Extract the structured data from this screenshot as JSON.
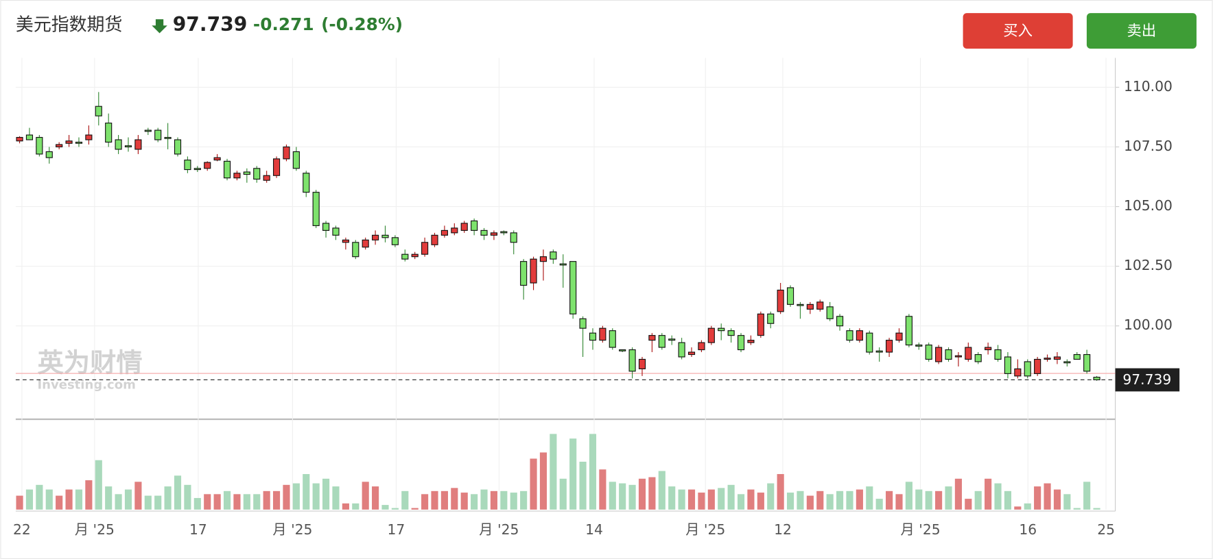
{
  "header": {
    "title": "美元指数期货",
    "change": "-0.271",
    "change_pct": "(-0.28%)",
    "buy": "买入",
    "sell": "卖出"
  },
  "watermark": {
    "cn": "英为财情",
    "en": "Investing.com"
  },
  "chart_data": {
    "type": "candlestick",
    "current_price": 97.739,
    "reference_line": 98.01,
    "ylim": [
      96.12,
      111.23
    ],
    "yticks": [
      {
        "value": 100,
        "label": "100.00"
      },
      {
        "value": 102.5,
        "label": "102.50"
      },
      {
        "value": 105,
        "label": "105.00"
      },
      {
        "value": 107.5,
        "label": "107.50"
      },
      {
        "value": 110,
        "label": "110.00"
      }
    ],
    "x_labels": [
      "22",
      "月 '25",
      "17",
      "月 '25",
      "17",
      "月 '25",
      "14",
      "月 '25",
      "12",
      "月 '25",
      "16",
      "25"
    ],
    "grid": true,
    "up_color": "#e23c3c",
    "down_color": "#7ee26d",
    "up_volume_color": "#e07e7e",
    "down_volume_color": "#a9d9bb",
    "volume_lim": [
      0,
      115
    ],
    "open": [
      107.75,
      108.0,
      107.9,
      107.3,
      107.5,
      107.65,
      107.7,
      107.8,
      109.2,
      108.5,
      107.8,
      107.55,
      107.4,
      108.2,
      108.2,
      107.9,
      107.8,
      106.95,
      106.6,
      106.6,
      106.95,
      106.9,
      106.2,
      106.45,
      106.6,
      106.1,
      106.3,
      107.0,
      107.3,
      106.4,
      105.6,
      104.3,
      104.1,
      103.5,
      103.5,
      103.3,
      103.6,
      103.8,
      103.7,
      103.0,
      102.9,
      103.0,
      103.4,
      103.8,
      103.9,
      104.0,
      104.4,
      104.0,
      103.8,
      103.95,
      103.9,
      102.7,
      101.8,
      102.7,
      103.1,
      102.6,
      102.7,
      100.3,
      99.7,
      99.4,
      99.8,
      99.0,
      99.0,
      98.2,
      99.4,
      99.6,
      99.45,
      99.3,
      98.8,
      99.0,
      99.3,
      99.9,
      99.8,
      99.6,
      99.3,
      99.6,
      100.5,
      100.6,
      101.6,
      100.9,
      100.7,
      100.7,
      100.8,
      100.4,
      99.8,
      99.4,
      99.7,
      98.95,
      98.9,
      99.4,
      100.4,
      99.2,
      99.2,
      98.5,
      99.0,
      98.7,
      98.6,
      98.8,
      99.0,
      99.0,
      98.7,
      97.9,
      98.5,
      98.0,
      98.6,
      98.6,
      98.5,
      98.8,
      98.8,
      97.85
    ],
    "high": [
      107.95,
      108.3,
      108.0,
      107.5,
      107.7,
      108.0,
      107.9,
      108.4,
      109.8,
      108.9,
      108.0,
      107.9,
      108.0,
      108.3,
      108.3,
      108.5,
      107.9,
      107.1,
      106.7,
      106.9,
      107.2,
      107.0,
      106.5,
      106.6,
      106.7,
      106.5,
      107.1,
      107.6,
      107.5,
      106.5,
      105.7,
      104.4,
      104.2,
      103.7,
      103.6,
      103.7,
      104.0,
      104.2,
      103.8,
      103.2,
      103.1,
      103.7,
      103.9,
      104.2,
      104.3,
      104.4,
      104.5,
      104.1,
      104.0,
      104.0,
      104.0,
      102.8,
      102.9,
      103.2,
      103.2,
      103.0,
      102.7,
      100.4,
      99.9,
      100.0,
      99.9,
      99.0,
      99.1,
      98.7,
      99.7,
      99.7,
      99.6,
      99.5,
      99.1,
      99.4,
      100.0,
      100.1,
      99.9,
      99.7,
      99.6,
      100.6,
      100.6,
      101.8,
      101.7,
      101.0,
      101.0,
      101.1,
      101.0,
      100.5,
      99.9,
      99.9,
      99.8,
      99.1,
      99.5,
      99.9,
      100.5,
      99.3,
      99.3,
      99.2,
      99.1,
      98.9,
      99.3,
      98.9,
      99.3,
      99.2,
      98.9,
      98.6,
      98.6,
      98.7,
      98.8,
      98.9,
      98.6,
      98.9,
      99.0,
      97.9
    ],
    "low": [
      107.65,
      107.8,
      107.1,
      106.8,
      107.4,
      107.5,
      107.5,
      107.6,
      108.4,
      107.5,
      107.2,
      107.3,
      107.2,
      108.0,
      107.7,
      107.4,
      107.1,
      106.4,
      106.45,
      106.5,
      106.9,
      106.1,
      106.1,
      106.0,
      106.0,
      106.0,
      106.2,
      106.9,
      106.5,
      105.4,
      104.1,
      103.7,
      103.6,
      103.2,
      102.8,
      103.2,
      103.4,
      103.5,
      103.3,
      102.7,
      102.8,
      102.9,
      103.3,
      103.7,
      103.8,
      103.9,
      103.8,
      103.6,
      103.6,
      103.8,
      103.0,
      101.1,
      101.5,
      101.9,
      102.6,
      101.6,
      100.3,
      98.7,
      99.0,
      99.3,
      99.0,
      98.9,
      97.8,
      97.9,
      98.9,
      99.0,
      99.2,
      98.6,
      98.7,
      98.9,
      99.2,
      99.4,
      99.3,
      98.9,
      99.2,
      99.5,
      99.9,
      100.5,
      100.8,
      100.3,
      100.5,
      100.6,
      100.2,
      99.8,
      99.3,
      99.3,
      98.8,
      98.5,
      98.7,
      99.3,
      99.1,
      99.0,
      98.5,
      98.4,
      98.5,
      98.3,
      98.5,
      98.4,
      98.8,
      98.5,
      97.8,
      97.8,
      97.8,
      97.9,
      98.5,
      98.4,
      98.3,
      98.6,
      98.0,
      97.7
    ],
    "close": [
      107.9,
      107.8,
      107.2,
      107.05,
      107.6,
      107.75,
      107.65,
      108.0,
      108.8,
      107.7,
      107.4,
      107.5,
      107.8,
      108.15,
      107.8,
      107.85,
      107.2,
      106.55,
      106.55,
      106.85,
      107.05,
      106.2,
      106.4,
      106.35,
      106.15,
      106.3,
      107.0,
      107.5,
      106.6,
      105.6,
      104.2,
      104.0,
      103.8,
      103.6,
      102.9,
      103.6,
      103.8,
      103.7,
      103.4,
      102.8,
      103.0,
      103.5,
      103.8,
      104.0,
      104.1,
      104.3,
      104.0,
      103.8,
      103.9,
      103.9,
      103.5,
      101.7,
      102.8,
      102.9,
      102.8,
      102.55,
      100.5,
      99.9,
      99.4,
      99.9,
      99.1,
      98.95,
      98.1,
      98.6,
      99.6,
      99.1,
      99.4,
      98.7,
      98.9,
      99.3,
      99.9,
      99.8,
      99.6,
      99.0,
      99.4,
      100.5,
      100.1,
      101.5,
      100.9,
      100.85,
      100.9,
      101.0,
      100.3,
      100.0,
      99.4,
      99.8,
      98.9,
      98.9,
      99.4,
      99.7,
      99.2,
      99.15,
      98.6,
      99.1,
      98.6,
      98.75,
      99.1,
      98.5,
      99.1,
      98.6,
      98.0,
      98.2,
      97.9,
      98.6,
      98.65,
      98.7,
      98.45,
      98.6,
      98.1,
      97.739
    ],
    "volume": [
      18,
      26,
      32,
      26,
      18,
      26,
      26,
      38,
      64,
      30,
      20,
      26,
      36,
      18,
      18,
      30,
      44,
      32,
      15,
      20,
      20,
      24,
      20,
      20,
      20,
      24,
      24,
      32,
      34,
      46,
      34,
      40,
      30,
      8,
      8,
      36,
      30,
      6,
      2,
      24,
      2,
      20,
      24,
      24,
      28,
      22,
      20,
      26,
      24,
      24,
      22,
      24,
      66,
      74,
      98,
      40,
      92,
      62,
      98,
      52,
      36,
      34,
      32,
      40,
      42,
      50,
      30,
      26,
      26,
      22,
      26,
      28,
      32,
      20,
      26,
      22,
      34,
      46,
      22,
      24,
      18,
      24,
      20,
      24,
      24,
      26,
      30,
      14,
      24,
      20,
      36,
      26,
      24,
      24,
      30,
      40,
      14,
      24,
      40,
      34,
      24,
      4,
      8,
      30,
      34,
      26,
      20,
      2,
      36,
      2
    ]
  }
}
